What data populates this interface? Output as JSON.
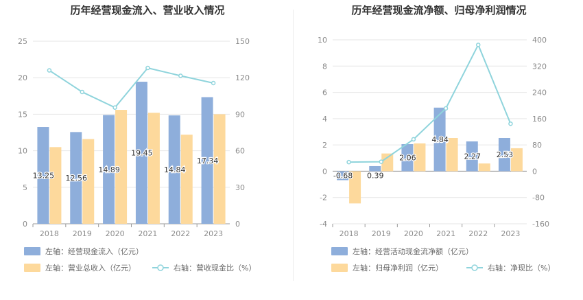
{
  "chart_data": [
    {
      "type": "bar",
      "title": "历年经营现金流入、营业收入情况",
      "categories": [
        "2018",
        "2019",
        "2020",
        "2021",
        "2022",
        "2023"
      ],
      "left_axis": {
        "ylim": [
          0,
          25
        ],
        "ticks": [
          "0",
          "5",
          "10",
          "15",
          "20",
          "25"
        ]
      },
      "right_axis": {
        "ylim": [
          0,
          150
        ],
        "ticks": [
          "0",
          "30",
          "60",
          "90",
          "120",
          "150"
        ]
      },
      "series": [
        {
          "name": "左轴：经营现金流入（亿元）",
          "kind": "bar",
          "axis": "left",
          "color": "#8eaedb",
          "values": [
            13.25,
            12.56,
            14.89,
            19.45,
            14.84,
            17.34
          ],
          "labels": [
            "13.25",
            "12.56",
            "14.89",
            "19.45",
            "14.84",
            "17.34"
          ]
        },
        {
          "name": "左轴：营业总收入（亿元）",
          "kind": "bar",
          "axis": "left",
          "color": "#fdd99c",
          "values": [
            10.5,
            11.6,
            15.6,
            15.2,
            12.2,
            15.0
          ]
        },
        {
          "name": "右轴：营收现金比（%）",
          "kind": "line",
          "axis": "right",
          "color": "#8fd4dc",
          "values": [
            126,
            108.3,
            95.5,
            128,
            121.6,
            115.6
          ]
        }
      ],
      "grid": true,
      "legend": "bottom"
    },
    {
      "type": "bar",
      "title": "历年经营现金流净额、归母净利润情况",
      "categories": [
        "2018",
        "2019",
        "2020",
        "2021",
        "2022",
        "2023"
      ],
      "left_axis": {
        "ylim": [
          -4,
          10
        ],
        "ticks": [
          "-4",
          "-2",
          "0",
          "2",
          "4",
          "6",
          "8",
          "10"
        ]
      },
      "right_axis": {
        "ylim": [
          -160,
          400
        ],
        "ticks": [
          "-160",
          "-80",
          "0",
          "80",
          "160",
          "240",
          "320",
          "400"
        ]
      },
      "series": [
        {
          "name": "左轴：经营活动现金流净额（亿元）",
          "kind": "bar",
          "axis": "left",
          "color": "#8eaedb",
          "values": [
            -0.68,
            0.39,
            2.06,
            4.84,
            2.27,
            2.53
          ],
          "labels": [
            "-0.68",
            "0.39",
            "2.06",
            "4.84",
            "2.27",
            "2.53"
          ]
        },
        {
          "name": "左轴：归母净利润（亿元）",
          "kind": "bar",
          "axis": "left",
          "color": "#fdd99c",
          "values": [
            -2.45,
            1.35,
            2.12,
            2.53,
            0.59,
            1.75
          ]
        },
        {
          "name": "右轴：净现比（%）",
          "kind": "line",
          "axis": "right",
          "color": "#8fd4dc",
          "values": [
            27.7,
            28.9,
            97.2,
            191.3,
            384.7,
            144.6
          ]
        }
      ],
      "grid": true,
      "legend": "bottom"
    }
  ]
}
